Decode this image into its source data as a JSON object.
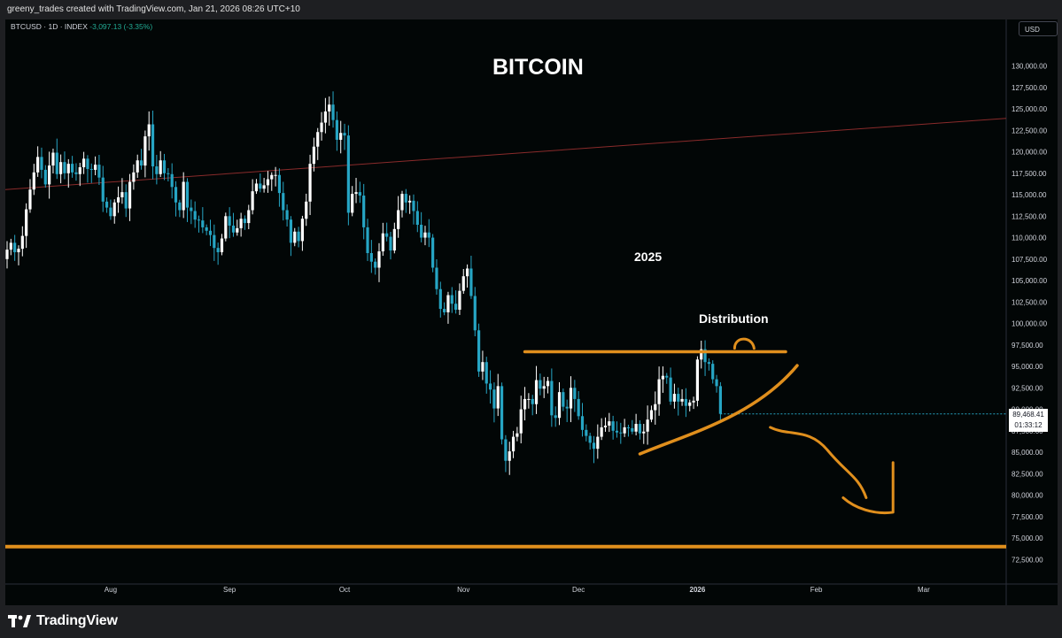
{
  "header": {
    "attribution": "greeny_trades created with TradingView.com, Jan 21, 2026 08:26 UTC+10"
  },
  "symbol_bar": {
    "symbol": "BTCUSD · 1D · INDEX",
    "change": "-3,097.13 (-3.35%)"
  },
  "currency_button": "USD",
  "current_price": {
    "price": "89,468.41",
    "countdown": "01:33:12"
  },
  "footer": {
    "brand": "TradingView"
  },
  "colors": {
    "background": "#020606",
    "up_candle": "#ffffff",
    "down_candle": "#26a5c4",
    "drawing": "#e08f1d",
    "trendline": "#8a2b2b"
  },
  "chart_data": {
    "type": "candlestick",
    "title": "BITCOIN",
    "annotations": [
      "2025",
      "Distribution"
    ],
    "xlabel": "",
    "ylabel": "",
    "x_ticks": [
      "Aug",
      "Sep",
      "Oct",
      "Nov",
      "Dec",
      "2026",
      "Feb",
      "Mar"
    ],
    "y_ticks": [
      "130,000.00",
      "127,500.00",
      "125,000.00",
      "122,500.00",
      "120,000.00",
      "117,500.00",
      "115,000.00",
      "112,500.00",
      "110,000.00",
      "107,500.00",
      "105,000.00",
      "102,500.00",
      "100,000.00",
      "97,500.00",
      "95,000.00",
      "92,500.00",
      "90,000.00",
      "87,500.00",
      "85,000.00",
      "82,500.00",
      "80,000.00",
      "77,500.00",
      "75,000.00",
      "72,500.00"
    ],
    "ylim": [
      71500,
      131500
    ],
    "start_date": "2025-07-05",
    "close_series": [
      108600,
      109400,
      108300,
      108700,
      110200,
      113300,
      115600,
      117600,
      119400,
      117900,
      116200,
      118400,
      119900,
      117400,
      118800,
      117500,
      118600,
      117600,
      117400,
      118200,
      119200,
      118000,
      117900,
      118500,
      117000,
      114200,
      113500,
      112500,
      114100,
      114700,
      115300,
      113400,
      116500,
      117600,
      119000,
      118400,
      121800,
      123200,
      118300,
      117400,
      119000,
      117500,
      117400,
      115900,
      114100,
      113200,
      116500,
      113500,
      113100,
      112100,
      112000,
      111200,
      110800,
      110300,
      108800,
      108300,
      109900,
      112500,
      111400,
      110600,
      111100,
      112200,
      111700,
      113200,
      115400,
      116300,
      115700,
      116100,
      116800,
      117300,
      117300,
      115200,
      113200,
      112100,
      109400,
      110700,
      109600,
      112200,
      114200,
      118600,
      120600,
      122300,
      123400,
      124700,
      125500,
      123700,
      121400,
      122200,
      121900,
      112900,
      115100,
      115300,
      114900,
      111200,
      108200,
      107200,
      106500,
      108400,
      110500,
      110100,
      108500,
      111000,
      113200,
      115100,
      114100,
      114300,
      113100,
      111500,
      110000,
      110600,
      110000,
      106500,
      104000,
      101700,
      101300,
      103300,
      102300,
      101600,
      103800,
      105500,
      106400,
      103200,
      99200,
      94400,
      95500,
      93000,
      92300,
      90100,
      92700,
      86500,
      84000,
      85100,
      86800,
      87200,
      90000,
      91200,
      91200,
      90600,
      93400,
      92400,
      92700,
      93300,
      89300,
      89000,
      92000,
      90300,
      90100,
      92500,
      91200,
      89200,
      87600,
      86900,
      86100,
      85400,
      86800,
      87900,
      88100,
      88600,
      87500,
      87300,
      87200,
      87900,
      87800,
      87400,
      88300,
      87200,
      87400,
      88800,
      89900,
      90600,
      93500,
      93900,
      93700,
      90900,
      91800,
      90900,
      91200,
      90400,
      90800,
      91000,
      95800,
      97000,
      95500,
      95300,
      93500,
      92700,
      89468
    ]
  }
}
